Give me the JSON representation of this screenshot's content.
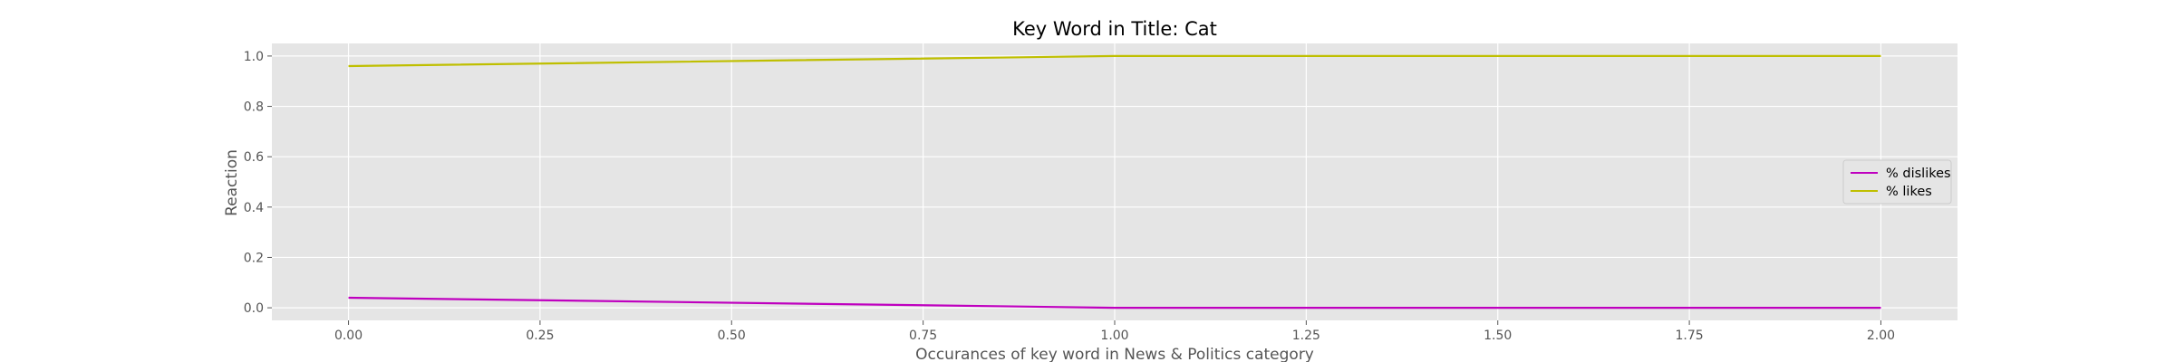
{
  "chart_data": {
    "type": "line",
    "title": "Key Word in Title: Cat",
    "xlabel": "Occurances of key word in News & Politics category",
    "ylabel": "Reaction",
    "xlim": [
      -0.1,
      2.1
    ],
    "ylim": [
      -0.05,
      1.05
    ],
    "x_ticks": [
      0.0,
      0.25,
      0.5,
      0.75,
      1.0,
      1.25,
      1.5,
      1.75,
      2.0
    ],
    "x_tick_labels": [
      "0.00",
      "0.25",
      "0.50",
      "0.75",
      "1.00",
      "1.25",
      "1.50",
      "1.75",
      "2.00"
    ],
    "y_ticks": [
      0.0,
      0.2,
      0.4,
      0.6,
      0.8,
      1.0
    ],
    "y_tick_labels": [
      "0.0",
      "0.2",
      "0.4",
      "0.6",
      "0.8",
      "1.0"
    ],
    "grid": true,
    "legend_position": "center-right",
    "x": [
      0,
      1,
      2
    ],
    "series": [
      {
        "name": "% dislikes",
        "color": "#bf00bf",
        "values": [
          0.04,
          0.0,
          0.0
        ]
      },
      {
        "name": "% likes",
        "color": "#bfbf00",
        "values": [
          0.96,
          1.0,
          1.0
        ]
      }
    ],
    "colors": {
      "plot_background": "#e5e5e5",
      "grid": "#ffffff"
    }
  }
}
